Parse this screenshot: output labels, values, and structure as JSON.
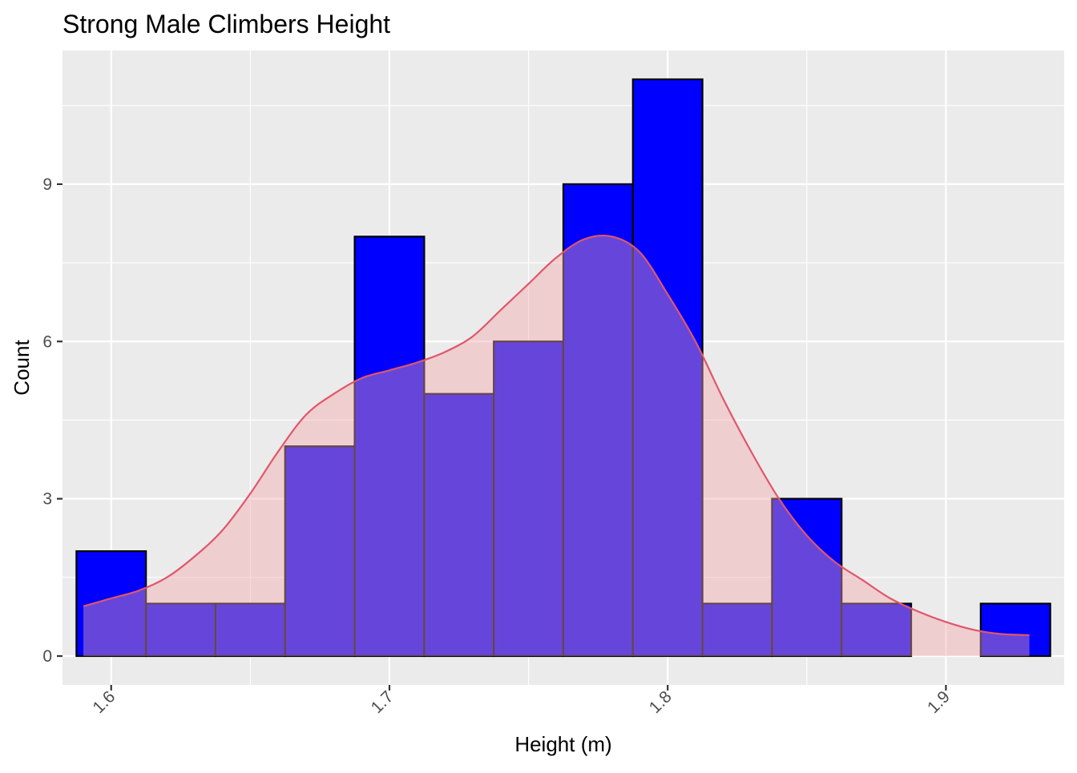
{
  "chart_data": {
    "type": "bar",
    "title": "Strong Male Climbers Height",
    "xlabel": "Height (m)",
    "ylabel": "Count",
    "xlim": [
      1.5825,
      1.9425
    ],
    "ylim": [
      -0.55,
      11.55
    ],
    "x_ticks": [
      "1.6",
      "1.7",
      "1.8",
      "1.9"
    ],
    "x_tick_values": [
      1.6,
      1.7,
      1.8,
      1.9
    ],
    "y_ticks": [
      "0",
      "3",
      "6",
      "9"
    ],
    "y_tick_values": [
      0,
      3,
      6,
      9
    ],
    "grid": true,
    "x_labels_rotation": -45,
    "histogram": {
      "bin_edges": [
        1.5875,
        1.6125,
        1.6375,
        1.6625,
        1.6875,
        1.7125,
        1.7375,
        1.7625,
        1.7875,
        1.8125,
        1.8375,
        1.8625,
        1.8875,
        1.9125,
        1.9375
      ],
      "counts": [
        2,
        1,
        1,
        4,
        8,
        5,
        6,
        9,
        11,
        1,
        3,
        1,
        0,
        1
      ],
      "fill_color": "#0000ff",
      "border_color": "#000000"
    },
    "density": {
      "x": [
        1.59,
        1.6,
        1.61,
        1.62,
        1.63,
        1.64,
        1.65,
        1.66,
        1.67,
        1.68,
        1.69,
        1.7,
        1.71,
        1.72,
        1.73,
        1.74,
        1.75,
        1.76,
        1.77,
        1.78,
        1.79,
        1.8,
        1.81,
        1.82,
        1.83,
        1.84,
        1.85,
        1.86,
        1.87,
        1.88,
        1.89,
        1.9,
        1.91,
        1.92,
        1.93
      ],
      "y": [
        0.95,
        1.1,
        1.25,
        1.5,
        1.9,
        2.4,
        3.1,
        3.9,
        4.6,
        5.0,
        5.3,
        5.45,
        5.6,
        5.8,
        6.1,
        6.6,
        7.1,
        7.6,
        7.95,
        8.0,
        7.7,
        6.9,
        6.0,
        4.9,
        3.9,
        3.0,
        2.3,
        1.8,
        1.45,
        1.1,
        0.85,
        0.65,
        0.5,
        0.42,
        0.4
      ],
      "line_color": "#e0566b",
      "fill_color": "#f4a6a8"
    },
    "panel_color": "#ebebeb",
    "grid_color": "#ffffff"
  }
}
